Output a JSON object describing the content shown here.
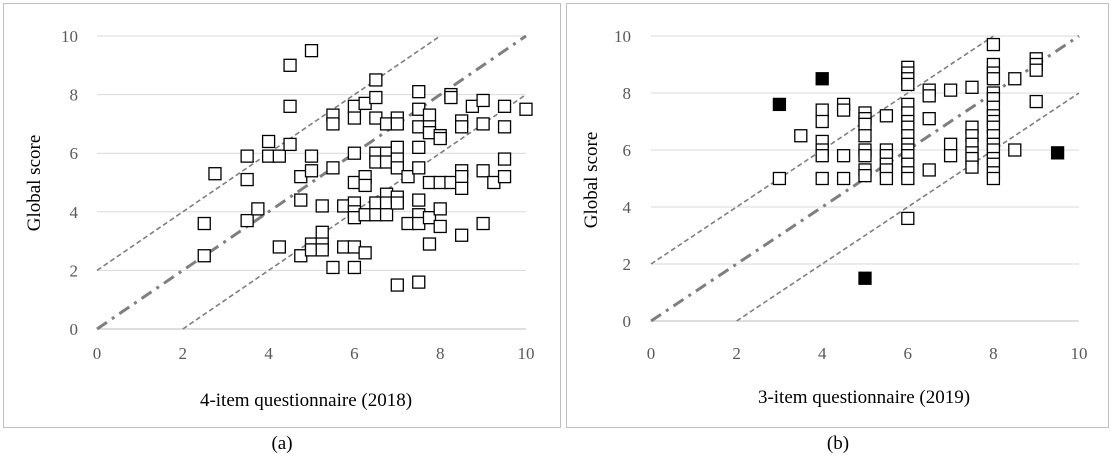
{
  "charts": [
    {
      "caption": "(a)",
      "chart_data": {
        "type": "scatter",
        "title": "",
        "xlabel": "4-item questionnaire (2018)",
        "ylabel": "Global score",
        "xlim": [
          0,
          10
        ],
        "ylim": [
          0,
          10
        ],
        "xticks": [
          "0",
          "2",
          "4",
          "6",
          "8",
          "10"
        ],
        "yticks": [
          "0",
          "2",
          "4",
          "6",
          "8",
          "10"
        ],
        "grid": "horizontal",
        "reference_lines": [
          {
            "style": "dash-dot",
            "slope": 1,
            "intercept": 0
          },
          {
            "style": "dashed",
            "slope": 1,
            "intercept": 2
          },
          {
            "style": "dashed",
            "slope": 1,
            "intercept": -2
          }
        ],
        "series": [
          {
            "marker": "hollow-square",
            "points": [
              [
                2.5,
                3.6
              ],
              [
                2.5,
                2.5
              ],
              [
                2.75,
                5.3
              ],
              [
                3.5,
                5.9
              ],
              [
                3.5,
                5.1
              ],
              [
                3.5,
                3.7
              ],
              [
                3.75,
                4.1
              ],
              [
                4,
                6.4
              ],
              [
                4,
                5.9
              ],
              [
                4.25,
                5.9
              ],
              [
                4.25,
                2.8
              ],
              [
                4.5,
                9.0
              ],
              [
                4.5,
                7.6
              ],
              [
                4.5,
                6.3
              ],
              [
                4.75,
                5.2
              ],
              [
                4.75,
                4.4
              ],
              [
                4.75,
                2.5
              ],
              [
                5,
                9.5
              ],
              [
                5,
                5.9
              ],
              [
                5,
                5.4
              ],
              [
                5,
                2.9
              ],
              [
                5,
                2.7
              ],
              [
                5.25,
                4.2
              ],
              [
                5.25,
                3.3
              ],
              [
                5.25,
                2.9
              ],
              [
                5.25,
                2.7
              ],
              [
                5.5,
                7.3
              ],
              [
                5.5,
                7.0
              ],
              [
                5.5,
                5.5
              ],
              [
                5.5,
                2.1
              ],
              [
                5.75,
                4.2
              ],
              [
                5.75,
                2.8
              ],
              [
                6,
                7.6
              ],
              [
                6,
                7.2
              ],
              [
                6,
                6.0
              ],
              [
                6,
                5.0
              ],
              [
                6,
                4.3
              ],
              [
                6,
                4.0
              ],
              [
                6,
                3.8
              ],
              [
                6,
                2.8
              ],
              [
                6,
                2.1
              ],
              [
                6.25,
                7.7
              ],
              [
                6.25,
                5.2
              ],
              [
                6.25,
                4.9
              ],
              [
                6.25,
                3.9
              ],
              [
                6.25,
                2.6
              ],
              [
                6.5,
                8.5
              ],
              [
                6.5,
                7.9
              ],
              [
                6.5,
                7.2
              ],
              [
                6.5,
                6.0
              ],
              [
                6.5,
                5.7
              ],
              [
                6.5,
                4.3
              ],
              [
                6.5,
                3.9
              ],
              [
                6.75,
                7.0
              ],
              [
                6.75,
                6.0
              ],
              [
                6.75,
                5.7
              ],
              [
                6.75,
                4.6
              ],
              [
                6.75,
                4.3
              ],
              [
                6.75,
                3.9
              ],
              [
                7,
                7.2
              ],
              [
                7,
                7.0
              ],
              [
                7,
                6.2
              ],
              [
                7,
                5.8
              ],
              [
                7,
                5.5
              ],
              [
                7,
                4.5
              ],
              [
                7,
                4.3
              ],
              [
                7,
                1.5
              ],
              [
                7.25,
                5.2
              ],
              [
                7.25,
                3.6
              ],
              [
                7.5,
                8.1
              ],
              [
                7.5,
                7.5
              ],
              [
                7.5,
                6.9
              ],
              [
                7.5,
                6.2
              ],
              [
                7.5,
                5.5
              ],
              [
                7.5,
                4.4
              ],
              [
                7.5,
                3.9
              ],
              [
                7.5,
                3.6
              ],
              [
                7.5,
                1.6
              ],
              [
                7.75,
                7.3
              ],
              [
                7.75,
                6.9
              ],
              [
                7.75,
                6.7
              ],
              [
                7.75,
                5.0
              ],
              [
                7.75,
                3.8
              ],
              [
                7.75,
                2.9
              ],
              [
                8,
                6.6
              ],
              [
                8,
                6.5
              ],
              [
                8,
                5.0
              ],
              [
                8,
                4.1
              ],
              [
                8,
                3.5
              ],
              [
                8.25,
                8.0
              ],
              [
                8.25,
                7.9
              ],
              [
                8.25,
                5.0
              ],
              [
                8.5,
                7.1
              ],
              [
                8.5,
                6.9
              ],
              [
                8.5,
                5.4
              ],
              [
                8.5,
                5.2
              ],
              [
                8.5,
                4.8
              ],
              [
                8.5,
                3.2
              ],
              [
                8.75,
                7.6
              ],
              [
                9,
                7.8
              ],
              [
                9,
                7.0
              ],
              [
                9,
                5.4
              ],
              [
                9,
                3.6
              ],
              [
                9.25,
                5.0
              ],
              [
                9.5,
                7.6
              ],
              [
                9.5,
                6.9
              ],
              [
                9.5,
                5.8
              ],
              [
                9.5,
                5.2
              ],
              [
                10,
                7.5
              ]
            ]
          }
        ]
      }
    },
    {
      "caption": "(b)",
      "chart_data": {
        "type": "scatter",
        "title": "",
        "xlabel": "3-item questionnaire (2019)",
        "ylabel": "Global score",
        "xlim": [
          0,
          10
        ],
        "ylim": [
          0,
          10
        ],
        "xticks": [
          "0",
          "2",
          "4",
          "6",
          "8",
          "10"
        ],
        "yticks": [
          "0",
          "2",
          "4",
          "6",
          "8",
          "10"
        ],
        "grid": "horizontal",
        "reference_lines": [
          {
            "style": "dash-dot",
            "slope": 1,
            "intercept": 0
          },
          {
            "style": "dashed",
            "slope": 1,
            "intercept": 2
          },
          {
            "style": "dashed",
            "slope": 1,
            "intercept": -2
          }
        ],
        "series": [
          {
            "marker": "hollow-square",
            "points": [
              [
                3,
                5.0
              ],
              [
                3.5,
                6.5
              ],
              [
                4,
                7.4
              ],
              [
                4,
                7.0
              ],
              [
                4,
                6.3
              ],
              [
                4,
                6.0
              ],
              [
                4,
                5.8
              ],
              [
                4,
                5.0
              ],
              [
                4.5,
                7.6
              ],
              [
                4.5,
                7.4
              ],
              [
                4.5,
                5.8
              ],
              [
                4.5,
                5.0
              ],
              [
                5,
                7.3
              ],
              [
                5,
                7.1
              ],
              [
                5,
                6.9
              ],
              [
                5,
                6.5
              ],
              [
                5,
                6.0
              ],
              [
                5,
                5.8
              ],
              [
                5,
                5.3
              ],
              [
                5,
                5.1
              ],
              [
                5.5,
                7.2
              ],
              [
                5.5,
                6.0
              ],
              [
                5.5,
                5.8
              ],
              [
                5.5,
                5.5
              ],
              [
                5.5,
                5.3
              ],
              [
                5.5,
                5.0
              ],
              [
                6,
                8.9
              ],
              [
                6,
                8.7
              ],
              [
                6,
                8.5
              ],
              [
                6,
                8.3
              ],
              [
                6,
                7.6
              ],
              [
                6,
                7.3
              ],
              [
                6,
                7.0
              ],
              [
                6,
                6.8
              ],
              [
                6,
                6.5
              ],
              [
                6,
                6.2
              ],
              [
                6,
                6.0
              ],
              [
                6,
                5.8
              ],
              [
                6,
                5.5
              ],
              [
                6,
                5.2
              ],
              [
                6,
                5.0
              ],
              [
                6,
                3.6
              ],
              [
                6.5,
                8.1
              ],
              [
                6.5,
                7.9
              ],
              [
                6.5,
                7.1
              ],
              [
                6.5,
                5.3
              ],
              [
                7,
                8.1
              ],
              [
                7,
                6.2
              ],
              [
                7,
                5.8
              ],
              [
                7.5,
                8.2
              ],
              [
                7.5,
                6.8
              ],
              [
                7.5,
                6.5
              ],
              [
                7.5,
                6.2
              ],
              [
                7.5,
                5.9
              ],
              [
                7.5,
                5.7
              ],
              [
                7.5,
                5.4
              ],
              [
                8,
                9.7
              ],
              [
                8,
                9.0
              ],
              [
                8,
                8.7
              ],
              [
                8,
                8.5
              ],
              [
                8,
                8.0
              ],
              [
                8,
                7.8
              ],
              [
                8,
                7.5
              ],
              [
                8,
                7.2
              ],
              [
                8,
                7.0
              ],
              [
                8,
                6.8
              ],
              [
                8,
                6.5
              ],
              [
                8,
                6.2
              ],
              [
                8,
                6.0
              ],
              [
                8,
                5.7
              ],
              [
                8,
                5.5
              ],
              [
                8,
                5.2
              ],
              [
                8,
                5.0
              ],
              [
                8.5,
                8.5
              ],
              [
                8.5,
                6.0
              ],
              [
                9,
                9.2
              ],
              [
                9,
                9.0
              ],
              [
                9,
                8.8
              ],
              [
                9,
                7.7
              ]
            ]
          },
          {
            "marker": "filled-square",
            "points": [
              [
                3,
                7.6
              ],
              [
                4,
                8.5
              ],
              [
                5,
                1.5
              ],
              [
                9.5,
                5.9
              ]
            ]
          }
        ]
      }
    }
  ]
}
